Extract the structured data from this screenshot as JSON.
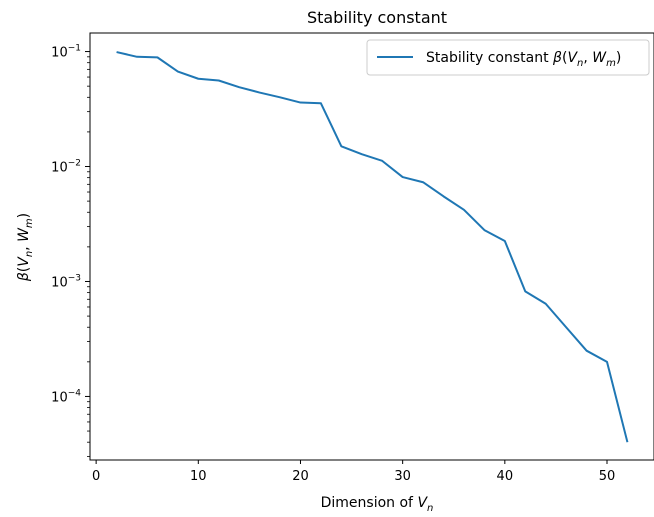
{
  "chart_data": {
    "type": "line",
    "title": "Stability constant",
    "xlabel_prefix": "Dimension of ",
    "xlabel_var": "V",
    "xlabel_sub": "n",
    "ylabel_text": "β(V_n, W_m)",
    "yscale": "log",
    "xlim": [
      -0.6,
      54.6
    ],
    "ylim": [
      2.8e-05,
      0.145
    ],
    "x_ticks": [
      0,
      10,
      20,
      30,
      40,
      50
    ],
    "y_ticks": [
      {
        "value": 0.1,
        "label": "10",
        "exp": "−1"
      },
      {
        "value": 0.01,
        "label": "10",
        "exp": "−2"
      },
      {
        "value": 0.001,
        "label": "10",
        "exp": "−3"
      },
      {
        "value": 0.0001,
        "label": "10",
        "exp": "−4"
      }
    ],
    "grid": false,
    "legend_position": "top-right",
    "series": [
      {
        "name": "Stability constant β(V_n, W_m)",
        "color": "#1f77b4",
        "x": [
          2,
          4,
          6,
          8,
          10,
          12,
          14,
          16,
          18,
          20,
          22,
          24,
          26,
          28,
          30,
          32,
          34,
          36,
          38,
          40,
          42,
          44,
          46,
          48,
          50,
          52
        ],
        "y": [
          0.099,
          0.09,
          0.089,
          0.067,
          0.058,
          0.056,
          0.049,
          0.044,
          0.04,
          0.036,
          0.0355,
          0.015,
          0.0128,
          0.0112,
          0.0081,
          0.0073,
          0.0055,
          0.0042,
          0.0028,
          0.00225,
          0.00082,
          0.00064,
          0.0004,
          0.00025,
          0.0002,
          4e-05
        ]
      }
    ]
  }
}
